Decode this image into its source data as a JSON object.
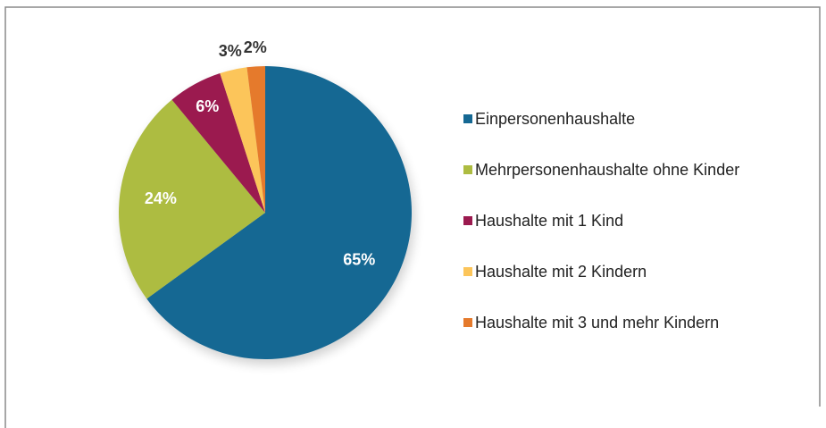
{
  "chart_data": {
    "type": "pie",
    "categories": [
      "Einpersonenhaushalte",
      "Mehrpersonenhaushalte ohne Kinder",
      "Haushalte mit 1 Kind",
      "Haushalte mit 2 Kindern",
      "Haushalte mit 3 und mehr Kindern"
    ],
    "values": [
      65,
      24,
      6,
      3,
      2
    ],
    "value_labels": [
      "65%",
      "24%",
      "6%",
      "3%",
      "2%"
    ],
    "colors": [
      "#156893",
      "#adbc41",
      "#9b1a4f",
      "#fcc55a",
      "#e57a2c"
    ],
    "legend": "right"
  }
}
